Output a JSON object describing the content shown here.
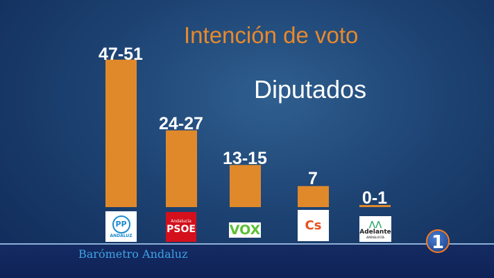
{
  "chart_data": {
    "type": "bar",
    "title": "Intención de voto",
    "subtitle": "Diputados",
    "categories": [
      "PP Andaluz",
      "PSOE Andalucía",
      "VOX",
      "Cs",
      "Adelante Andalucía"
    ],
    "labels": [
      "47-51",
      "24-27",
      "13-15",
      "7",
      "0-1"
    ],
    "ranges": [
      [
        47,
        51
      ],
      [
        24,
        27
      ],
      [
        13,
        15
      ],
      [
        7,
        7
      ],
      [
        0,
        1
      ]
    ],
    "bar_color": "#e0892a",
    "ylim": [
      0,
      50
    ],
    "grid": false
  },
  "logos": {
    "pp": {
      "mark": "PP",
      "text": "ANDALUZ"
    },
    "psoe": {
      "top": "Andalucía",
      "mark": "PSOE"
    },
    "vox": {
      "mark": "VOX"
    },
    "cs": {
      "mark": "Cs"
    },
    "adelante": {
      "mark": "Adelante",
      "sub": "ANDALUCÍA"
    }
  },
  "footer": {
    "program": "Barómetro Andaluz",
    "channel_logo": "1"
  }
}
